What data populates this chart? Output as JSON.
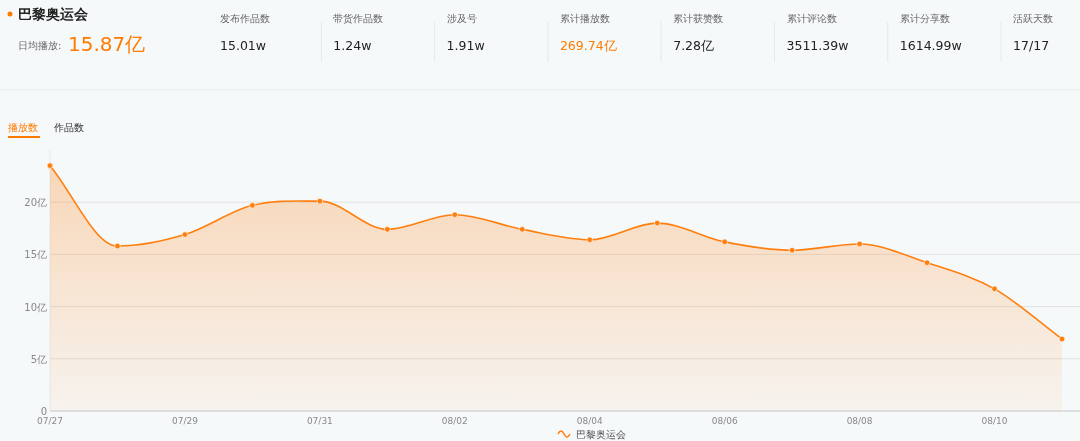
{
  "chart_data": [
    {
      "type": "other",
      "title": "巴黎奥运会",
      "annotations": [
        "日均播放:",
        "15.87亿",
        "发布作品数",
        "15.01w",
        "带货作品数",
        "1.24w",
        "涉及号",
        "1.91w",
        "累计播放数",
        "269.74亿",
        "累计获赞数",
        "7.28亿",
        "累计评论数",
        "3511.39w",
        "累计分享数",
        "1614.99w",
        "活跃天数",
        "17/17"
      ],
      "colors": [
        "#666666",
        "#ff7a00",
        "#666666",
        "#222222",
        "#666666",
        "#222222",
        "#666666",
        "#222222",
        "#666666",
        "#ff7a00",
        "#666666",
        "#222222",
        "#666666",
        "#222222",
        "#666666",
        "#222222",
        "#666666",
        "#222222"
      ]
    },
    {
      "type": "area",
      "annotations": [
        "播放数",
        "作品数"
      ],
      "categories": [
        "07/27",
        null,
        "07/29",
        null,
        "07/31",
        null,
        "08/02",
        null,
        "08/04",
        null,
        "08/06",
        null,
        "08/08",
        null,
        "08/10",
        null
      ],
      "series": [
        {
          "name": "巴黎奥运会",
          "color": "#ff7f0e",
          "values": [
            23.5,
            15.8,
            16.9,
            19.7,
            20.1,
            17.4,
            18.8,
            17.4,
            16.4,
            18.0,
            16.2,
            15.4,
            16.0,
            14.2,
            11.7,
            6.9
          ]
        }
      ],
      "ylim": [
        0,
        25
      ],
      "yticks": [
        0,
        {
          "value": 5,
          "label": "5亿"
        },
        {
          "value": 10,
          "label": "10亿"
        },
        {
          "value": 15,
          "label": "15亿"
        },
        {
          "value": 20,
          "label": "20亿"
        }
      ],
      "grid": "y",
      "legend": "bottom",
      "marker": "circle"
    }
  ]
}
